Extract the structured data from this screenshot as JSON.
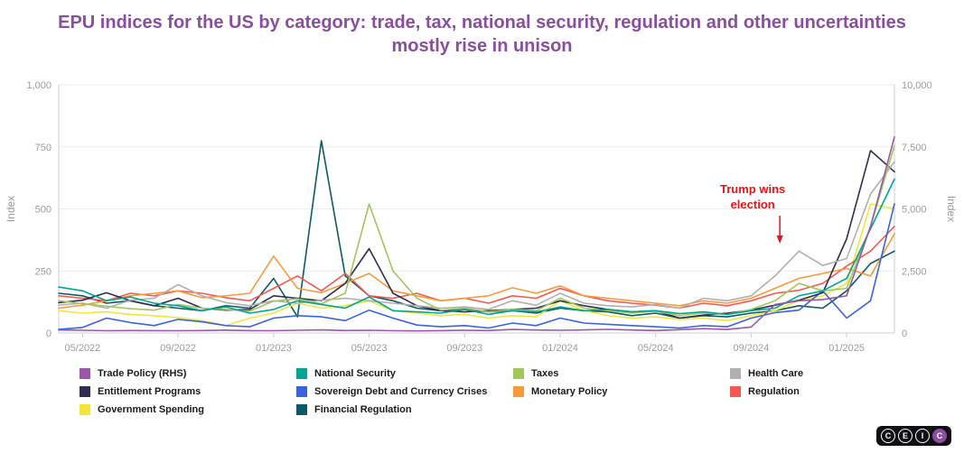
{
  "title": "EPU indices for the US by category: trade, tax, national security, regulation and other uncertainties mostly rise in unison",
  "colors": {
    "title": "#8a4e9e",
    "axis_text": "#9b9b9b",
    "gridline": "#ececec",
    "axis_line": "#cfcfcf",
    "annotation": "#ee1111",
    "legend_text": "#1a1a1a",
    "logo_bg": "#101014",
    "logo_accent": "#8b4f9e",
    "background": "#ffffff"
  },
  "chart_data": {
    "type": "line",
    "x": [
      "04/2022",
      "05/2022",
      "06/2022",
      "07/2022",
      "08/2022",
      "09/2022",
      "10/2022",
      "11/2022",
      "12/2022",
      "01/2023",
      "02/2023",
      "03/2023",
      "04/2023",
      "05/2023",
      "06/2023",
      "07/2023",
      "08/2023",
      "09/2023",
      "10/2023",
      "11/2023",
      "12/2023",
      "01/2024",
      "02/2024",
      "03/2024",
      "04/2024",
      "05/2024",
      "06/2024",
      "07/2024",
      "08/2024",
      "09/2024",
      "10/2024",
      "11/2024",
      "12/2024",
      "01/2025",
      "02/2025",
      "03/2025"
    ],
    "x_tick_indices": [
      1,
      5,
      9,
      13,
      17,
      21,
      25,
      29,
      33
    ],
    "left_axis": {
      "label": "Index",
      "max": 1000,
      "tick_values": [
        0,
        250,
        500,
        750,
        1000
      ],
      "tick_labels": [
        "0",
        "250",
        "500",
        "750",
        "1,000"
      ]
    },
    "right_axis": {
      "label": "Index",
      "max": 10000,
      "tick_labels": [
        "0",
        "2,500",
        "5,000",
        "7,500",
        "10,000"
      ]
    },
    "annotation": {
      "line1": "Trump wins",
      "line2": "election",
      "x_index": 30.2
    },
    "series": [
      {
        "id": "trade-policy-rhs",
        "name": "Trade Policy (RHS)",
        "color": "#9a58a8",
        "axis": "right",
        "values": [
          120,
          110,
          90,
          100,
          95,
          90,
          100,
          115,
          95,
          90,
          110,
          125,
          100,
          110,
          90,
          85,
          95,
          110,
          100,
          140,
          120,
          110,
          125,
          145,
          120,
          100,
          135,
          175,
          140,
          240,
          1150,
          1300,
          1350,
          1500,
          4300,
          7900
        ]
      },
      {
        "id": "national-security",
        "name": "National Security",
        "color": "#00a693",
        "axis": "left",
        "values": [
          185,
          170,
          130,
          145,
          120,
          110,
          90,
          105,
          80,
          95,
          130,
          115,
          100,
          145,
          90,
          85,
          80,
          95,
          75,
          90,
          85,
          105,
          90,
          95,
          85,
          90,
          78,
          85,
          75,
          90,
          100,
          150,
          170,
          220,
          420,
          620
        ]
      },
      {
        "id": "taxes",
        "name": "Taxes",
        "color": "#a2c65b",
        "axis": "left",
        "values": [
          130,
          118,
          108,
          98,
          92,
          115,
          100,
          95,
          88,
          128,
          138,
          118,
          160,
          520,
          250,
          140,
          92,
          100,
          85,
          95,
          90,
          140,
          100,
          90,
          80,
          88,
          70,
          80,
          75,
          95,
          130,
          200,
          170,
          180,
          430,
          755
        ]
      },
      {
        "id": "health-care",
        "name": "Health Care",
        "color": "#b0b0b0",
        "axis": "left",
        "values": [
          112,
          120,
          100,
          132,
          140,
          195,
          150,
          122,
          110,
          130,
          120,
          132,
          140,
          130,
          120,
          110,
          100,
          105,
          95,
          130,
          112,
          160,
          120,
          110,
          105,
          115,
          100,
          140,
          130,
          150,
          230,
          330,
          272,
          300,
          560,
          690
        ]
      },
      {
        "id": "entitlement-programs",
        "name": "Entitlement Programs",
        "color": "#2f2d52",
        "axis": "left",
        "values": [
          122,
          132,
          162,
          130,
          110,
          140,
          100,
          92,
          95,
          150,
          140,
          130,
          200,
          340,
          160,
          110,
          90,
          85,
          90,
          95,
          100,
          130,
          110,
          95,
          85,
          90,
          60,
          72,
          80,
          92,
          112,
          132,
          162,
          380,
          735,
          650
        ]
      },
      {
        "id": "sovereign-debt-currency-crises",
        "name": "Sovereign Debt and Currency Crises",
        "color": "#3a63de",
        "axis": "left",
        "values": [
          15,
          22,
          60,
          42,
          30,
          55,
          45,
          30,
          25,
          60,
          70,
          65,
          50,
          92,
          60,
          32,
          25,
          30,
          20,
          40,
          30,
          60,
          40,
          35,
          30,
          25,
          20,
          30,
          25,
          60,
          82,
          92,
          170,
          60,
          130,
          520
        ]
      },
      {
        "id": "monetary-policy",
        "name": "Monetary Policy",
        "color": "#f79a3b",
        "axis": "left",
        "values": [
          100,
          112,
          130,
          150,
          160,
          170,
          142,
          150,
          160,
          310,
          180,
          162,
          200,
          240,
          170,
          150,
          130,
          140,
          150,
          182,
          160,
          190,
          150,
          140,
          130,
          120,
          110,
          130,
          120,
          140,
          180,
          220,
          240,
          260,
          230,
          400
        ]
      },
      {
        "id": "regulation",
        "name": "Regulation",
        "color": "#f6594f",
        "axis": "left",
        "values": [
          150,
          140,
          130,
          160,
          150,
          170,
          160,
          142,
          130,
          180,
          230,
          170,
          240,
          150,
          140,
          160,
          130,
          140,
          120,
          150,
          140,
          180,
          150,
          130,
          120,
          112,
          100,
          120,
          110,
          130,
          160,
          172,
          200,
          270,
          330,
          430
        ]
      },
      {
        "id": "government-spending",
        "name": "Government Spending",
        "color": "#f2e63d",
        "axis": "left",
        "values": [
          90,
          80,
          85,
          75,
          70,
          62,
          50,
          30,
          60,
          80,
          120,
          100,
          110,
          130,
          90,
          80,
          70,
          75,
          60,
          70,
          65,
          130,
          90,
          70,
          60,
          65,
          55,
          60,
          50,
          70,
          90,
          130,
          150,
          200,
          520,
          500
        ]
      },
      {
        "id": "financial-regulation",
        "name": "Financial Regulation",
        "color": "#0d5a64",
        "axis": "left",
        "values": [
          160,
          150,
          120,
          130,
          110,
          100,
          90,
          110,
          100,
          220,
          65,
          775,
          230,
          150,
          130,
          100,
          90,
          95,
          85,
          90,
          80,
          100,
          90,
          85,
          70,
          80,
          60,
          70,
          65,
          80,
          90,
          110,
          100,
          170,
          280,
          330
        ]
      }
    ]
  },
  "logo": {
    "letters": [
      "C",
      "E",
      "I",
      "C"
    ]
  }
}
